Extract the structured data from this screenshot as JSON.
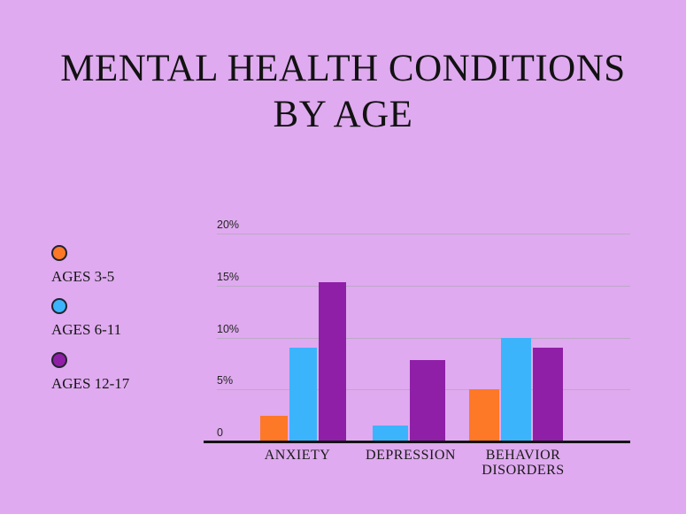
{
  "title": {
    "line1": "MENTAL HEALTH CONDITIONS",
    "line2": "BY AGE"
  },
  "colors": {
    "background": "#dfaaef",
    "orange": "#fd7827",
    "blue": "#3cb4fb",
    "purple": "#8f1fa7",
    "gridline": "#bba9c7",
    "axis": "#141414",
    "text": "#141414"
  },
  "chart_data": {
    "type": "bar",
    "title": "MENTAL HEALTH CONDITIONS BY AGE",
    "categories": [
      "ANXIETY",
      "DEPRESSION",
      "BEHAVIOR DISORDERS"
    ],
    "series": [
      {
        "name": "AGES 3-5",
        "color": "#fd7827",
        "values": [
          2.5,
          0,
          5
        ]
      },
      {
        "name": "AGES 6-11",
        "color": "#3cb4fb",
        "values": [
          9,
          1.5,
          10
        ]
      },
      {
        "name": "AGES 12-17",
        "color": "#8f1fa7",
        "values": [
          15.3,
          7.8,
          9
        ]
      }
    ],
    "xlabel": "",
    "ylabel": "",
    "ylim": [
      0,
      20
    ],
    "y_ticks": [
      {
        "label": "20%",
        "value": 20
      },
      {
        "label": "15%",
        "value": 15
      },
      {
        "label": "10%",
        "value": 10
      },
      {
        "label": "5%",
        "value": 5
      },
      {
        "label": "0",
        "value": 0
      }
    ],
    "grid": true,
    "legend_position": "left"
  }
}
